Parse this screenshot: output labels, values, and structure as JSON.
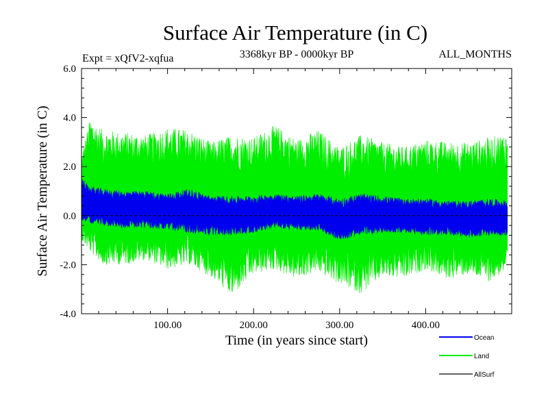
{
  "chart_data": {
    "type": "line",
    "title": "Surface Air Temperature (in C)",
    "experiment_label": "Expt = xQfV2-xqfua",
    "period_label": "3368kyr BP - 0000kyr BP",
    "months_label": "ALL_MONTHS",
    "xlabel": "Time (in years since start)",
    "ylabel": "Surface Air Temperature (in C)",
    "xlim": [
      0,
      500
    ],
    "ylim": [
      -4.0,
      6.0
    ],
    "xticks": [
      100,
      200,
      300,
      400
    ],
    "xtick_labels": [
      "100.00",
      "200.00",
      "300.00",
      "400.00"
    ],
    "yticks": [
      6.0,
      4.0,
      2.0,
      0.0,
      -2.0,
      -4.0
    ],
    "ytick_labels": [
      "6.0",
      "4.0",
      "2.0",
      "0.0",
      "-2.0",
      "-4.0"
    ],
    "legend_position": "bottom-right",
    "series": [
      {
        "name": "Land",
        "color": "#00ee00",
        "x": [
          0,
          10,
          25,
          50,
          75,
          100,
          125,
          150,
          175,
          200,
          225,
          250,
          275,
          300,
          325,
          350,
          375,
          400,
          425,
          450,
          475,
          495
        ],
        "min": [
          -1.0,
          -1.5,
          -2.0,
          -2.0,
          -1.8,
          -2.2,
          -2.0,
          -2.5,
          -3.3,
          -2.4,
          -2.2,
          -2.6,
          -2.3,
          -2.8,
          -3.2,
          -2.5,
          -2.6,
          -2.2,
          -2.6,
          -2.4,
          -2.7,
          -2.2
        ],
        "max": [
          2.5,
          4.0,
          3.5,
          3.4,
          3.3,
          3.6,
          3.5,
          3.0,
          3.3,
          3.2,
          3.7,
          3.1,
          3.5,
          2.8,
          3.3,
          3.0,
          2.8,
          3.1,
          3.0,
          3.0,
          3.2,
          3.4
        ],
        "mean": [
          0.4,
          0.6,
          0.3,
          0.5,
          0.4,
          0.3,
          0.4,
          0.2,
          0.1,
          0.2,
          0.4,
          0.3,
          0.3,
          -0.2,
          0.2,
          0.1,
          0.3,
          0.2,
          0.1,
          0.1,
          0.2,
          0.1
        ]
      },
      {
        "name": "Ocean",
        "color": "#0000ee",
        "x": [
          0,
          10,
          25,
          50,
          75,
          100,
          125,
          150,
          175,
          200,
          225,
          250,
          275,
          300,
          325,
          350,
          375,
          400,
          425,
          450,
          475,
          495
        ],
        "min": [
          -0.2,
          -0.3,
          -0.4,
          -0.5,
          -0.5,
          -0.6,
          -0.7,
          -0.8,
          -0.8,
          -0.7,
          -0.5,
          -0.6,
          -0.6,
          -1.0,
          -0.8,
          -0.7,
          -0.7,
          -0.8,
          -0.8,
          -0.9,
          -0.8,
          -0.8
        ],
        "max": [
          1.5,
          1.2,
          1.1,
          1.0,
          1.0,
          0.9,
          1.1,
          0.8,
          0.8,
          0.8,
          0.9,
          0.8,
          0.9,
          0.7,
          0.9,
          0.8,
          0.7,
          0.7,
          0.6,
          0.6,
          0.7,
          0.6
        ],
        "mean": [
          0.4,
          0.4,
          0.3,
          0.3,
          0.3,
          0.2,
          0.2,
          0.1,
          0.0,
          0.1,
          0.2,
          0.1,
          0.1,
          -0.2,
          0.0,
          0.0,
          0.0,
          0.0,
          -0.1,
          -0.1,
          -0.1,
          -0.1
        ]
      },
      {
        "name": "AllSurf",
        "color": "#000000",
        "x": [
          0,
          495
        ],
        "values": [
          0.0,
          0.0
        ]
      }
    ]
  }
}
